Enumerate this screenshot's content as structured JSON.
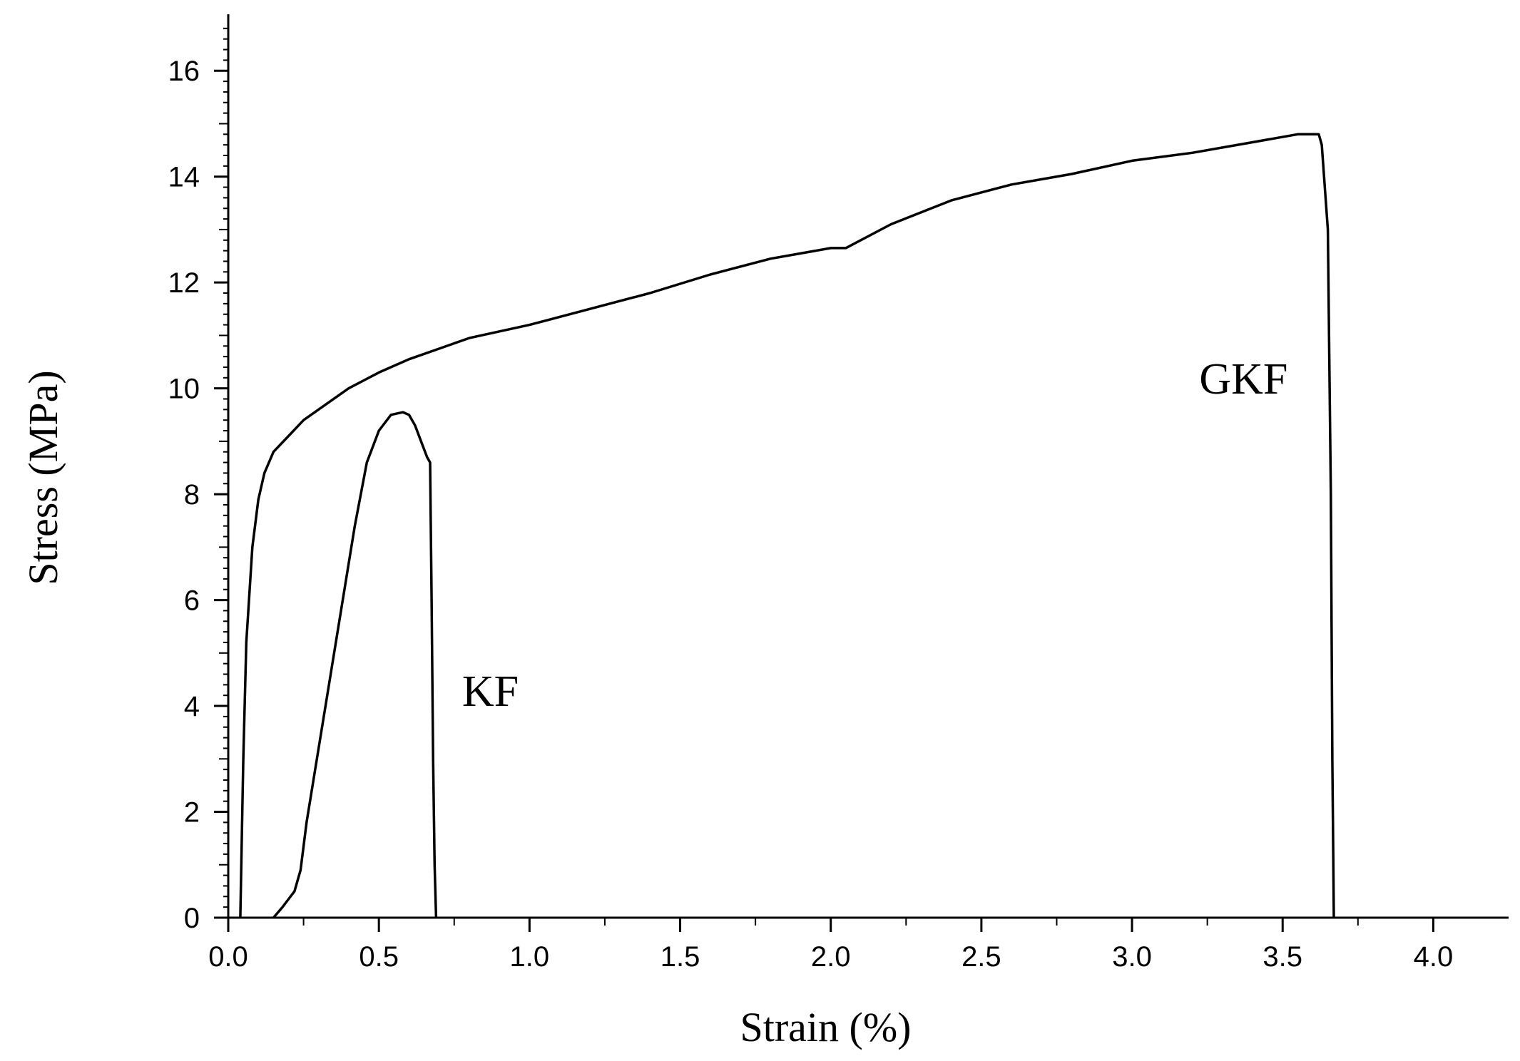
{
  "chart_data": {
    "type": "line",
    "title": "",
    "xlabel": "Strain (%)",
    "ylabel": "Stress (MPa)",
    "xlim": [
      0.0,
      4.25
    ],
    "ylim": [
      0,
      17
    ],
    "x_ticks": [
      "0.0",
      "0.5",
      "1.0",
      "1.5",
      "2.0",
      "2.5",
      "3.0",
      "3.5",
      "4.0"
    ],
    "y_ticks": [
      "0",
      "2",
      "4",
      "6",
      "8",
      "10",
      "12",
      "14",
      "16"
    ],
    "grid": false,
    "legend": "none",
    "series": [
      {
        "name": "KF",
        "x": [
          0.15,
          0.18,
          0.2,
          0.22,
          0.24,
          0.26,
          0.3,
          0.34,
          0.38,
          0.42,
          0.46,
          0.5,
          0.54,
          0.58,
          0.6,
          0.62,
          0.64,
          0.66,
          0.67,
          0.675,
          0.68,
          0.685,
          0.69
        ],
        "y": [
          0.0,
          0.2,
          0.35,
          0.5,
          0.9,
          1.8,
          3.2,
          4.6,
          6.0,
          7.4,
          8.6,
          9.2,
          9.5,
          9.55,
          9.5,
          9.3,
          9.0,
          8.7,
          8.6,
          6.0,
          3.0,
          1.0,
          0.0
        ]
      },
      {
        "name": "GKF",
        "x": [
          0.04,
          0.05,
          0.06,
          0.08,
          0.1,
          0.12,
          0.15,
          0.2,
          0.25,
          0.3,
          0.4,
          0.5,
          0.6,
          0.7,
          0.8,
          1.0,
          1.2,
          1.4,
          1.6,
          1.8,
          2.0,
          2.05,
          2.2,
          2.4,
          2.6,
          2.8,
          3.0,
          3.2,
          3.4,
          3.55,
          3.62,
          3.63,
          3.65,
          3.66,
          3.665,
          3.67
        ],
        "y": [
          0.0,
          3.0,
          5.2,
          7.0,
          7.9,
          8.4,
          8.8,
          9.1,
          9.4,
          9.6,
          10.0,
          10.3,
          10.55,
          10.75,
          10.95,
          11.2,
          11.5,
          11.8,
          12.15,
          12.45,
          12.65,
          12.65,
          13.1,
          13.55,
          13.85,
          14.05,
          14.3,
          14.45,
          14.65,
          14.8,
          14.8,
          14.6,
          13.0,
          8.0,
          3.0,
          0.0
        ]
      }
    ],
    "annotations": [
      {
        "text": "KF",
        "x": 0.87,
        "y": 4.0
      },
      {
        "text": "GKF",
        "x": 3.37,
        "y": 9.9
      }
    ]
  }
}
